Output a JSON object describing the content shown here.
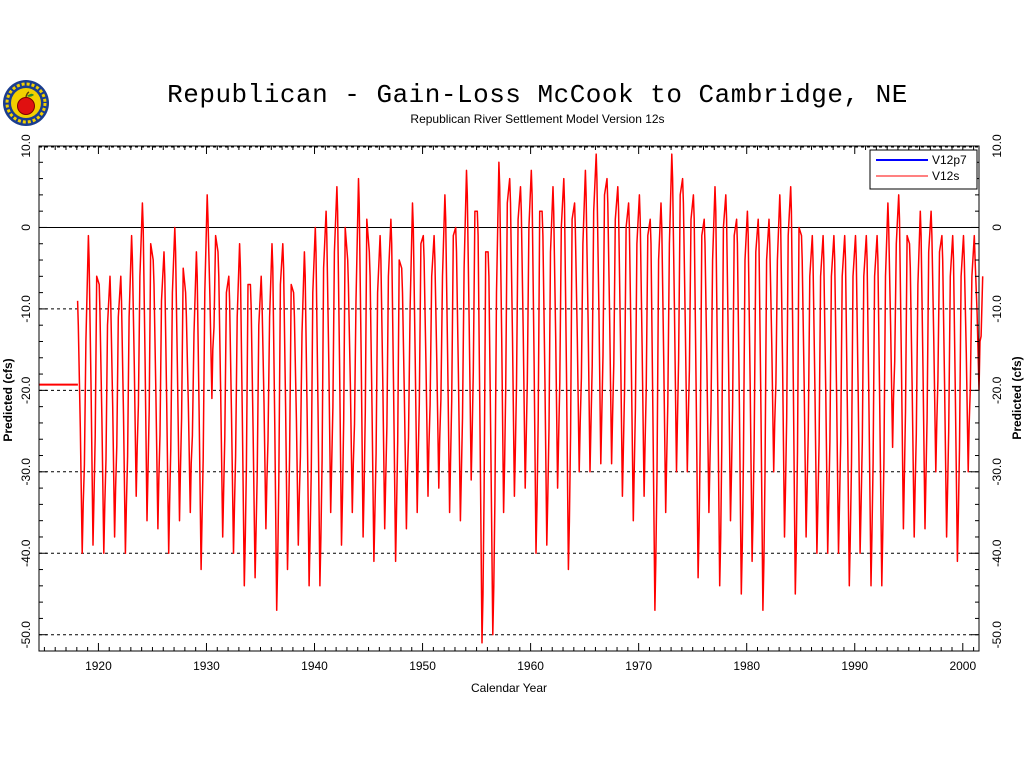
{
  "chart_data": {
    "type": "line",
    "title": "Republican - Gain-Loss McCook to Cambridge, NE",
    "subtitle": "Republican River Settlement Model Version 12s",
    "xlabel": "Calendar Year",
    "ylabel": "Predicted (cfs)",
    "ylabel_right": "Predicted (cfs)",
    "xlim": [
      1914.5,
      2001.5
    ],
    "ylim": [
      -52,
      10
    ],
    "x_ticks": [
      1920,
      1930,
      1940,
      1950,
      1960,
      1970,
      1980,
      1990,
      2000
    ],
    "y_ticks": [
      10,
      0,
      -10,
      -20,
      -30,
      -40,
      -50
    ],
    "y_tick_labels": [
      "10.0",
      "0",
      "-10.0",
      "-20.0",
      "-30.0",
      "-40.0",
      "-50.0"
    ],
    "grid": {
      "dashed_y": [
        -10,
        -20,
        -30,
        -40,
        -50
      ],
      "solid_y": [
        0
      ]
    },
    "legend_position": "top-right",
    "series": [
      {
        "name": "V12p7",
        "color": "#0000ff",
        "points": []
      },
      {
        "name": "V12s",
        "color": "#ff0000",
        "baseline": {
          "x": [
            1914.5,
            1918.1
          ],
          "y": -19.3
        },
        "annual": [
          [
            1918,
            -9,
            -40
          ],
          [
            1919,
            -1,
            -39
          ],
          [
            1920,
            -7,
            -40
          ],
          [
            1921,
            -6,
            -38
          ],
          [
            1922,
            -6,
            -40
          ],
          [
            1923,
            -1,
            -33
          ],
          [
            1924,
            3,
            -36
          ],
          [
            1925,
            -4,
            -37
          ],
          [
            1926,
            -3,
            -40
          ],
          [
            1927,
            0,
            -36
          ],
          [
            1928,
            -8,
            -35
          ],
          [
            1929,
            -3,
            -42
          ],
          [
            1930,
            4,
            -21
          ],
          [
            1931,
            -3,
            -38
          ],
          [
            1932,
            -6,
            -40
          ],
          [
            1933,
            -2,
            -44
          ],
          [
            1934,
            -7,
            -43
          ],
          [
            1935,
            -6,
            -37
          ],
          [
            1936,
            -2,
            -47
          ],
          [
            1937,
            -2,
            -42
          ],
          [
            1938,
            -8,
            -39
          ],
          [
            1939,
            -3,
            -44
          ],
          [
            1940,
            0,
            -44
          ],
          [
            1941,
            2,
            -35
          ],
          [
            1942,
            5,
            -39
          ],
          [
            1943,
            -4,
            -35
          ],
          [
            1944,
            6,
            -38
          ],
          [
            1945,
            -3,
            -41
          ],
          [
            1946,
            -1,
            -37
          ],
          [
            1947,
            1,
            -41
          ],
          [
            1948,
            -5,
            -37
          ],
          [
            1949,
            3,
            -35
          ],
          [
            1950,
            -1,
            -33
          ],
          [
            1951,
            -1,
            -32
          ],
          [
            1952,
            4,
            -35
          ],
          [
            1953,
            0,
            -36
          ],
          [
            1954,
            7,
            -31
          ],
          [
            1955,
            2,
            -51
          ],
          [
            1956,
            -3,
            -50
          ],
          [
            1957,
            8,
            -35
          ],
          [
            1958,
            6,
            -33
          ],
          [
            1959,
            5,
            -32
          ],
          [
            1960,
            7,
            -40
          ],
          [
            1961,
            2,
            -39
          ],
          [
            1962,
            5,
            -32
          ],
          [
            1963,
            6,
            -42
          ],
          [
            1964,
            3,
            -30
          ],
          [
            1965,
            7,
            -30
          ],
          [
            1966,
            9,
            -29
          ],
          [
            1967,
            6,
            -29
          ],
          [
            1968,
            5,
            -33
          ],
          [
            1969,
            3,
            -36
          ],
          [
            1970,
            4,
            -33
          ],
          [
            1971,
            1,
            -47
          ],
          [
            1972,
            3,
            -35
          ],
          [
            1973,
            9,
            -30
          ],
          [
            1974,
            6,
            -30
          ],
          [
            1975,
            4,
            -43
          ],
          [
            1976,
            1,
            -35
          ],
          [
            1977,
            5,
            -44
          ],
          [
            1978,
            4,
            -36
          ],
          [
            1979,
            1,
            -45
          ],
          [
            1980,
            2,
            -41
          ],
          [
            1981,
            1,
            -47
          ],
          [
            1982,
            1,
            -30
          ],
          [
            1983,
            4,
            -38
          ],
          [
            1984,
            5,
            -45
          ],
          [
            1985,
            -1,
            -38
          ],
          [
            1986,
            -1,
            -40
          ],
          [
            1987,
            -1,
            -40
          ],
          [
            1988,
            -1,
            -40
          ],
          [
            1989,
            -1,
            -44
          ],
          [
            1990,
            -1,
            -40
          ],
          [
            1991,
            -1,
            -44
          ],
          [
            1992,
            -1,
            -44
          ],
          [
            1993,
            3,
            -27
          ],
          [
            1994,
            4,
            -37
          ],
          [
            1995,
            -2,
            -38
          ],
          [
            1996,
            2,
            -37
          ],
          [
            1997,
            2,
            -30
          ],
          [
            1998,
            -1,
            -38
          ],
          [
            1999,
            -1,
            -41
          ],
          [
            2000,
            -1,
            -30
          ],
          [
            2001,
            -1,
            -20
          ]
        ]
      }
    ]
  }
}
